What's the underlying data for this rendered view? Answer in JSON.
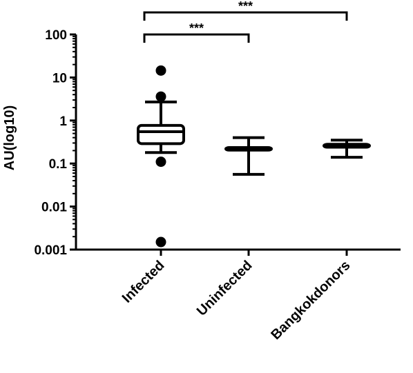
{
  "chart_data": {
    "type": "box",
    "scale": "log10",
    "ylabel": "AU(log10)",
    "ylim": [
      0.001,
      100
    ],
    "yticks": [
      {
        "value": 100,
        "label": "100"
      },
      {
        "value": 10,
        "label": "10"
      },
      {
        "value": 1,
        "label": "1"
      },
      {
        "value": 0.1,
        "label": "0.1"
      },
      {
        "value": 0.01,
        "label": "0.01"
      },
      {
        "value": 0.001,
        "label": "0.001"
      }
    ],
    "categories": [
      "Infected",
      "Uninfected",
      "Bangkokdonors"
    ],
    "boxes": [
      {
        "category": "Infected",
        "whisker_low": 0.18,
        "q1": 0.29,
        "median": 0.55,
        "q3": 0.77,
        "whisker_high": 2.7,
        "outliers": [
          14.5,
          3.6,
          0.11,
          0.0015
        ]
      },
      {
        "category": "Uninfected",
        "whisker_low": 0.056,
        "q1": 0.205,
        "median": 0.22,
        "q3": 0.235,
        "whisker_high": 0.4,
        "outliers": []
      },
      {
        "category": "Bangkokdonors",
        "whisker_low": 0.14,
        "q1": 0.24,
        "median": 0.26,
        "q3": 0.28,
        "whisker_high": 0.35,
        "outliers": []
      }
    ],
    "significance": [
      {
        "from": "Infected",
        "to": "Uninfected",
        "label": "***"
      },
      {
        "from": "Infected",
        "to": "Bangkokdonors",
        "label": "***"
      }
    ],
    "grid": false
  }
}
